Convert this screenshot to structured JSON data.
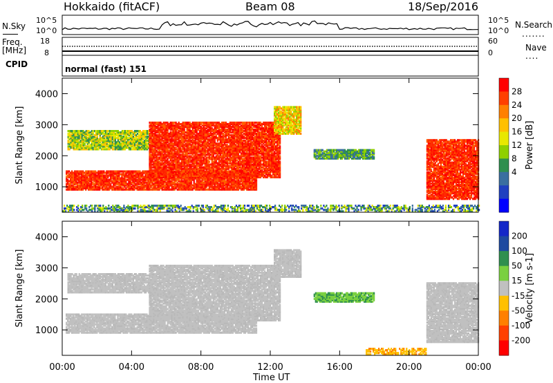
{
  "header": {
    "station": "Hokkaido (fitACF)",
    "beam": "Beam 08",
    "date": "18/Sep/2016"
  },
  "aux_panels": {
    "nsky_label": "N.Sky",
    "nsky_ticks": [
      "10^5",
      "10^0"
    ],
    "nsearch_label": "N.Search",
    "nsearch_ticks": [
      "10^5",
      "10^0"
    ],
    "freq_label": "Freq.",
    "freq_unit": "[MHz]",
    "freq_ticks": [
      "18",
      "8"
    ],
    "nave_label": "Nave",
    "nave_ticks": [
      "60",
      "0"
    ],
    "cpid_label": "CPID",
    "cpid_value": "normal (fast) 151"
  },
  "chart_data": [
    {
      "type": "heatmap",
      "panel": "power",
      "ylabel": "Slant Range [km]",
      "xlabel": "",
      "x_ticks": [
        "00:00",
        "04:00",
        "08:00",
        "12:00",
        "16:00",
        "20:00",
        "00:00"
      ],
      "xlim_hours": [
        0,
        24
      ],
      "ylim": [
        180,
        4500
      ],
      "y_ticks": [
        1000,
        2000,
        3000,
        4000
      ],
      "colorbar": {
        "label": "Power [dB]",
        "ticks": [
          "28",
          "24",
          "20",
          "16",
          "12",
          "8",
          "4"
        ],
        "colors": [
          "#ff0000",
          "#ff4000",
          "#ff8000",
          "#ffc000",
          "#e8e800",
          "#8fd000",
          "#2f8f4f",
          "#3a6fa0",
          "#2040c0",
          "#0000ff"
        ]
      },
      "regions": [
        {
          "t0": 0.2,
          "t1": 11.2,
          "r0": 900,
          "r1": 1500,
          "level": "high"
        },
        {
          "t0": 0.3,
          "t1": 5.0,
          "r0": 2200,
          "r1": 2800,
          "level": "low-mid"
        },
        {
          "t0": 5.0,
          "t1": 12.6,
          "r0": 1300,
          "r1": 3100,
          "level": "high"
        },
        {
          "t0": 12.2,
          "t1": 13.8,
          "r0": 2700,
          "r1": 3600,
          "level": "mid"
        },
        {
          "t0": 14.5,
          "t1": 18.0,
          "r0": 1900,
          "r1": 2200,
          "level": "low"
        },
        {
          "t0": 21.0,
          "t1": 24.0,
          "r0": 600,
          "r1": 2500,
          "level": "high"
        },
        {
          "t0": 0.0,
          "t1": 24.0,
          "r0": 200,
          "r1": 420,
          "level": "noise"
        }
      ]
    },
    {
      "type": "heatmap",
      "panel": "velocity",
      "ylabel": "Slant Range [km]",
      "xlabel": "Time UT",
      "x_ticks": [
        "00:00",
        "04:00",
        "08:00",
        "12:00",
        "16:00",
        "20:00",
        "00:00"
      ],
      "xlim_hours": [
        0,
        24
      ],
      "ylim": [
        180,
        4500
      ],
      "y_ticks": [
        1000,
        2000,
        3000,
        4000
      ],
      "colorbar": {
        "label": "Velocity [m s-1]",
        "ticks": [
          "200",
          "100",
          "50",
          "15",
          "-15",
          "-50",
          "-100",
          "-200"
        ],
        "colors": [
          "#1428c8",
          "#1e4aa0",
          "#2f8f4f",
          "#7ad040",
          "#c0c0c0",
          "#ffc000",
          "#ff8000",
          "#ff4000",
          "#ff0000"
        ]
      },
      "regions": [
        {
          "t0": 0.2,
          "t1": 11.2,
          "r0": 900,
          "r1": 1500,
          "level": "near-zero"
        },
        {
          "t0": 0.3,
          "t1": 5.0,
          "r0": 2200,
          "r1": 2800,
          "level": "near-zero"
        },
        {
          "t0": 5.0,
          "t1": 12.6,
          "r0": 1300,
          "r1": 3100,
          "level": "near-zero"
        },
        {
          "t0": 12.2,
          "t1": 13.8,
          "r0": 2700,
          "r1": 3600,
          "level": "near-zero"
        },
        {
          "t0": 14.5,
          "t1": 18.0,
          "r0": 1900,
          "r1": 2200,
          "level": "positive"
        },
        {
          "t0": 21.0,
          "t1": 24.0,
          "r0": 600,
          "r1": 2500,
          "level": "near-zero"
        },
        {
          "t0": 17.5,
          "t1": 21.0,
          "r0": 200,
          "r1": 420,
          "level": "negative"
        }
      ]
    }
  ]
}
